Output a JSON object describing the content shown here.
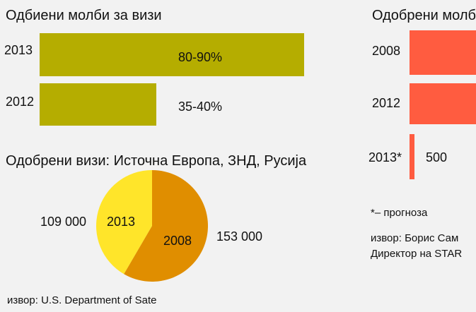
{
  "colors": {
    "background": "#f2f2f2",
    "olive": "#b5ad00",
    "coral": "#ff5c40",
    "pie_orange": "#e08e00",
    "pie_yellow": "#ffe52a",
    "text": "#111111"
  },
  "chart_data": [
    {
      "type": "bar",
      "title": "Одбиени молби за визи",
      "categories": [
        "2013",
        "2012"
      ],
      "values": [
        85,
        37.5
      ],
      "value_labels": [
        "80-90%",
        "35-40%"
      ],
      "unit": "%",
      "xlim": [
        0,
        100
      ],
      "orientation": "horizontal",
      "grid": false,
      "legend": "none"
    },
    {
      "type": "bar",
      "title": "Одобрени молб",
      "categories": [
        "2008",
        "2012",
        "2013*"
      ],
      "values": [
        null,
        null,
        500
      ],
      "value_labels": [
        "",
        "",
        "500"
      ],
      "orientation": "horizontal",
      "grid": false,
      "legend": "none"
    },
    {
      "type": "pie",
      "title": "Одобрени визи: Источна Европа, ЗНД, Русија",
      "slices": [
        {
          "label": "2008",
          "value": 153000,
          "value_label": "153 000",
          "color": "#e08e00"
        },
        {
          "label": "2013",
          "value": 109000,
          "value_label": "109 000",
          "color": "#ffe52a"
        }
      ],
      "legend": "none"
    }
  ],
  "notes": {
    "forecast": "*– прогноза",
    "source_left": "извор: U.S. Department of Sate",
    "source_right_line1": "извор: Борис Сам",
    "source_right_line2": "Директор на STAR"
  }
}
